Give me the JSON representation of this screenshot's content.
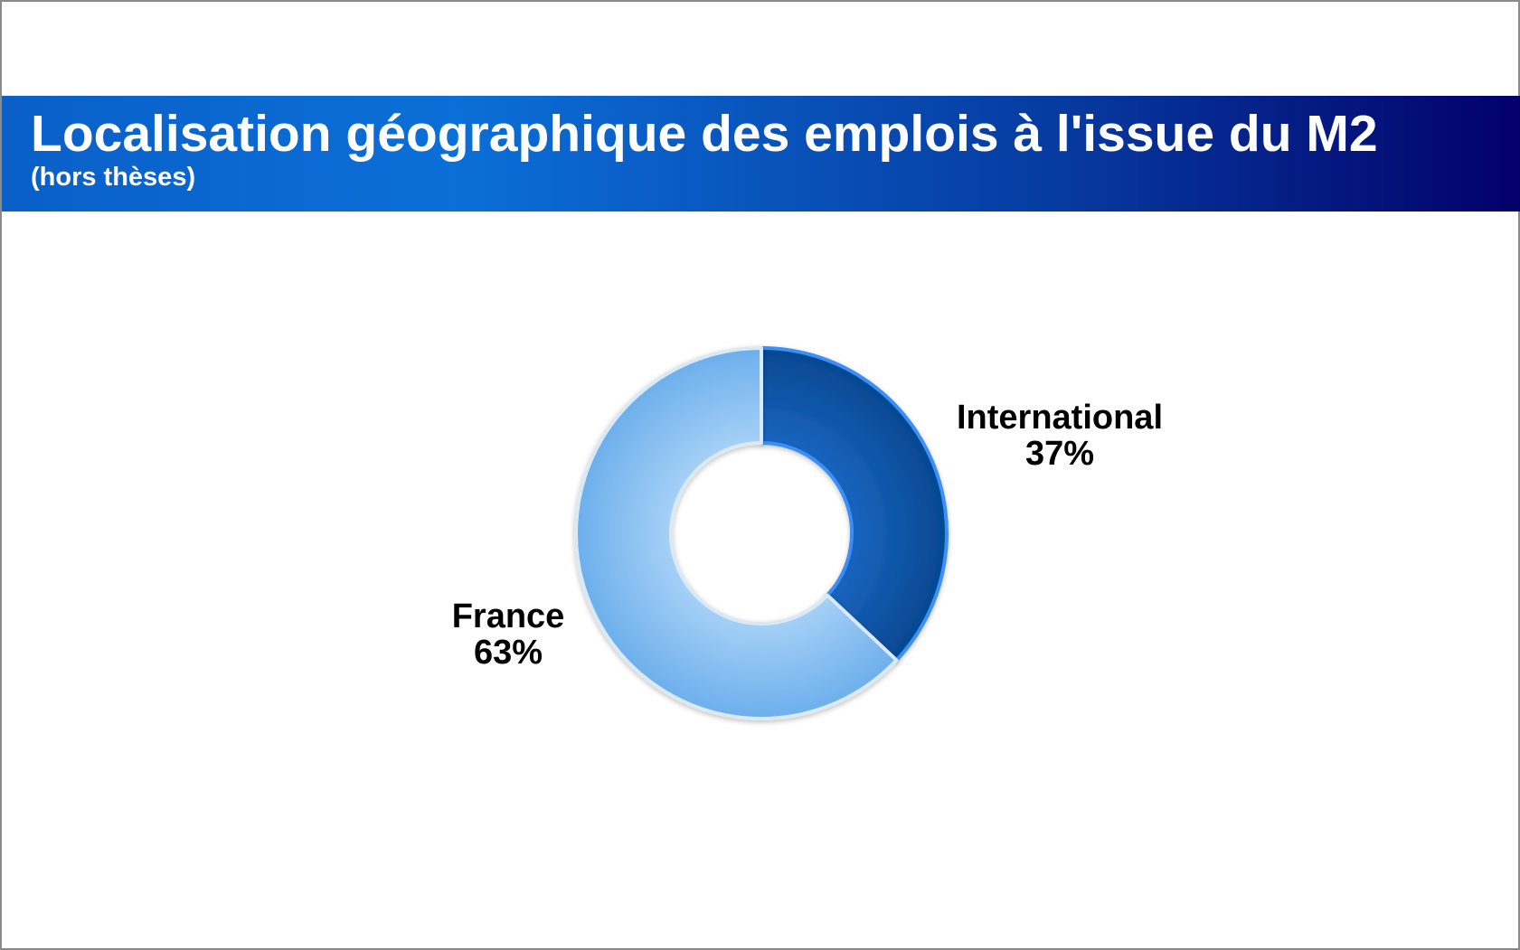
{
  "chart_data": {
    "type": "pie",
    "variant": "donut",
    "title": "Localisation géographique des emplois à l'issue du M2",
    "subtitle": "(hors thèses)",
    "categories": [
      "International",
      "France"
    ],
    "values": [
      37,
      63
    ],
    "value_labels": [
      "37%",
      "63%"
    ],
    "unit": "%",
    "colors": {
      "International": "#0a4f9c",
      "France": "#7ab7ee",
      "slice_outline": "#dbe9f5",
      "international_edge": "#3d8ef5"
    },
    "legend": "none",
    "labels_position": "outside"
  },
  "header": {
    "background_from": "#0b6fd8",
    "background_to": "#03006a",
    "text_color": "#ffffff"
  }
}
